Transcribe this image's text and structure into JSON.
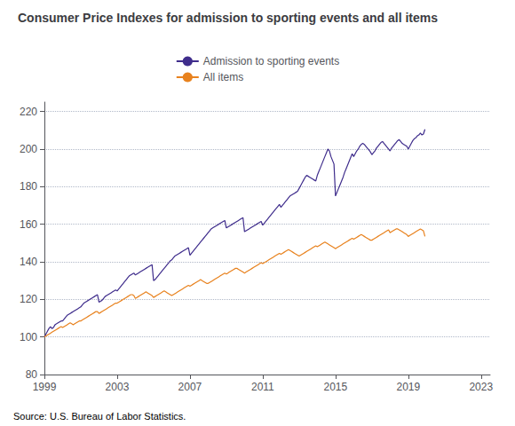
{
  "chart_data": {
    "type": "line",
    "title": "Consumer Price Indexes for admission to sporting events and all items",
    "annotations": [
      "Source: U.S. Bureau of Labor Statistics."
    ],
    "legend": "top",
    "grid": true,
    "xlim": [
      1999,
      2023.5
    ],
    "xticks": [
      1999,
      2003,
      2007,
      2011,
      2015,
      2019,
      2023
    ],
    "ylim": [
      80,
      225
    ],
    "yticks": [
      80,
      100,
      120,
      140,
      160,
      180,
      200,
      220
    ],
    "x": [
      1999,
      1999.08333333,
      1999.16666667,
      1999.25,
      1999.33333333,
      1999.41666667,
      1999.5,
      1999.58333333,
      1999.66666667,
      1999.75,
      1999.83333333,
      1999.91666667,
      2000,
      2000.08333333,
      2000.16666667,
      2000.25,
      2000.33333333,
      2000.41666667,
      2000.5,
      2000.58333333,
      2000.66666667,
      2000.75,
      2000.83333333,
      2000.91666667,
      2001,
      2001.08333333,
      2001.16666667,
      2001.25,
      2001.33333333,
      2001.41666667,
      2001.5,
      2001.58333333,
      2001.66666667,
      2001.75,
      2001.83333333,
      2001.91666667,
      2002,
      2002.08333333,
      2002.16666667,
      2002.25,
      2002.33333333,
      2002.41666667,
      2002.5,
      2002.58333333,
      2002.66666667,
      2002.75,
      2002.83333333,
      2002.91666667,
      2003,
      2003.08333333,
      2003.16666667,
      2003.25,
      2003.33333333,
      2003.41666667,
      2003.5,
      2003.58333333,
      2003.66666667,
      2003.75,
      2003.83333333,
      2003.91666667,
      2004,
      2004.08333333,
      2004.16666667,
      2004.25,
      2004.33333333,
      2004.41666667,
      2004.5,
      2004.58333333,
      2004.66666667,
      2004.75,
      2004.83333333,
      2004.91666667,
      2005,
      2005.08333333,
      2005.16666667,
      2005.25,
      2005.33333333,
      2005.41666667,
      2005.5,
      2005.58333333,
      2005.66666667,
      2005.75,
      2005.83333333,
      2005.91666667,
      2006,
      2006.08333333,
      2006.16666667,
      2006.25,
      2006.33333333,
      2006.41666667,
      2006.5,
      2006.58333333,
      2006.66666667,
      2006.75,
      2006.83333333,
      2006.91666667,
      2007,
      2007.08333333,
      2007.16666667,
      2007.25,
      2007.33333333,
      2007.41666667,
      2007.5,
      2007.58333333,
      2007.66666667,
      2007.75,
      2007.83333333,
      2007.91666667,
      2008,
      2008.08333333,
      2008.16666667,
      2008.25,
      2008.33333333,
      2008.41666667,
      2008.5,
      2008.58333333,
      2008.66666667,
      2008.75,
      2008.83333333,
      2008.91666667,
      2009,
      2009.08333333,
      2009.16666667,
      2009.25,
      2009.33333333,
      2009.41666667,
      2009.5,
      2009.58333333,
      2009.66666667,
      2009.75,
      2009.83333333,
      2009.91666667,
      2010,
      2010.08333333,
      2010.16666667,
      2010.25,
      2010.33333333,
      2010.41666667,
      2010.5,
      2010.58333333,
      2010.66666667,
      2010.75,
      2010.83333333,
      2010.91666667,
      2011,
      2011.08333333,
      2011.16666667,
      2011.25,
      2011.33333333,
      2011.41666667,
      2011.5,
      2011.58333333,
      2011.66666667,
      2011.75,
      2011.83333333,
      2011.91666667,
      2012,
      2012.08333333,
      2012.16666667,
      2012.25,
      2012.33333333,
      2012.41666667,
      2012.5,
      2012.58333333,
      2012.66666667,
      2012.75,
      2012.83333333,
      2012.91666667,
      2013,
      2013.08333333,
      2013.16666667,
      2013.25,
      2013.33333333,
      2013.41666667,
      2013.5,
      2013.58333333,
      2013.66666667,
      2013.75,
      2013.83333333,
      2013.91666667,
      2014,
      2014.08333333,
      2014.16666667,
      2014.25,
      2014.33333333,
      2014.41666667,
      2014.5,
      2014.58333333,
      2014.66666667,
      2014.75,
      2014.83333333,
      2014.91666667,
      2015,
      2015.08333333,
      2015.16666667,
      2015.25,
      2015.33333333,
      2015.41666667,
      2015.5,
      2015.58333333,
      2015.66666667,
      2015.75,
      2015.83333333,
      2015.91666667,
      2016,
      2016.08333333,
      2016.16666667,
      2016.25,
      2016.33333333,
      2016.41666667,
      2016.5,
      2016.58333333,
      2016.66666667,
      2016.75,
      2016.83333333,
      2016.91666667,
      2017,
      2017.08333333,
      2017.16666667,
      2017.25,
      2017.33333333,
      2017.41666667,
      2017.5,
      2017.58333333,
      2017.66666667,
      2017.75,
      2017.83333333,
      2017.91666667,
      2018,
      2018.08333333,
      2018.16666667,
      2018.25,
      2018.33333333,
      2018.41666667,
      2018.5,
      2018.58333333,
      2018.66666667,
      2018.75,
      2018.83333333,
      2018.91666667,
      2019,
      2019.08333333,
      2019.16666667,
      2019.25,
      2019.33333333,
      2019.41666667,
      2019.5,
      2019.58333333,
      2019.66666667,
      2019.75,
      2019.83333333,
      2019.91666667
    ],
    "series": [
      {
        "name": "Admission to sporting events",
        "color": "#3f2d8c",
        "values": [
          100.0,
          101.5,
          103.0,
          104.5,
          105.5,
          104.5,
          105.0,
          106.5,
          107.0,
          107.5,
          108.0,
          108.5,
          108.5,
          109.5,
          110.5,
          111.5,
          112.0,
          112.5,
          113.0,
          113.5,
          114.0,
          114.5,
          115.0,
          115.5,
          116.0,
          117.0,
          118.0,
          118.5,
          119.0,
          119.5,
          120.0,
          120.5,
          121.0,
          121.5,
          122.0,
          122.5,
          118.5,
          119.0,
          119.5,
          120.5,
          121.5,
          122.0,
          122.5,
          123.0,
          123.5,
          124.0,
          124.5,
          125.0,
          124.5,
          125.5,
          126.5,
          127.5,
          128.5,
          129.5,
          130.5,
          131.5,
          132.5,
          133.0,
          133.5,
          134.0,
          133.0,
          133.5,
          134.0,
          134.5,
          135.0,
          135.5,
          136.0,
          136.5,
          137.0,
          137.5,
          138.0,
          138.5,
          130.0,
          130.5,
          131.5,
          132.5,
          133.5,
          134.5,
          135.5,
          136.5,
          137.5,
          138.5,
          139.5,
          140.5,
          141.0,
          142.0,
          143.0,
          143.5,
          144.0,
          144.5,
          145.0,
          145.5,
          146.0,
          146.5,
          147.0,
          147.5,
          143.5,
          144.5,
          145.5,
          146.5,
          147.5,
          148.5,
          149.5,
          150.5,
          151.5,
          152.5,
          153.5,
          154.5,
          155.5,
          156.5,
          157.5,
          158.0,
          158.5,
          159.0,
          159.5,
          160.0,
          160.5,
          161.0,
          161.5,
          162.0,
          158.0,
          158.5,
          159.0,
          159.5,
          160.0,
          160.5,
          161.0,
          161.5,
          162.0,
          162.5,
          163.0,
          163.5,
          156.0,
          156.5,
          157.0,
          157.5,
          158.0,
          158.5,
          159.0,
          159.5,
          160.0,
          160.5,
          161.0,
          161.5,
          159.5,
          160.5,
          161.5,
          162.5,
          163.5,
          164.5,
          165.5,
          166.5,
          167.5,
          168.5,
          169.5,
          170.5,
          169.0,
          170.0,
          171.0,
          172.0,
          173.0,
          174.0,
          175.0,
          175.5,
          176.0,
          176.5,
          177.0,
          177.5,
          179.0,
          180.5,
          182.0,
          183.5,
          185.0,
          186.0,
          185.5,
          185.0,
          184.5,
          184.0,
          183.5,
          183.0,
          186.0,
          188.0,
          190.0,
          192.0,
          194.0,
          196.0,
          198.0,
          200.0,
          199.0,
          196.0,
          194.0,
          192.0,
          175.0,
          177.0,
          179.0,
          181.0,
          183.0,
          185.0,
          187.5,
          189.5,
          191.5,
          193.5,
          195.5,
          197.5,
          196.0,
          197.5,
          199.0,
          200.0,
          201.5,
          202.5,
          203.0,
          202.5,
          201.5,
          200.5,
          199.5,
          198.5,
          197.0,
          198.0,
          199.0,
          200.5,
          201.5,
          202.5,
          203.5,
          204.0,
          203.0,
          202.0,
          201.0,
          200.0,
          199.0,
          200.5,
          201.5,
          202.5,
          203.5,
          204.5,
          205.0,
          204.0,
          203.0,
          202.5,
          202.0,
          201.5,
          200.0,
          201.5,
          203.0,
          204.5,
          205.5,
          206.0,
          207.0,
          207.5,
          208.5,
          207.5,
          208.0,
          210.5
        ]
      },
      {
        "name": "All items",
        "color": "#e8821e",
        "values": [
          100.0,
          100.5,
          101.0,
          101.5,
          102.0,
          102.5,
          103.0,
          103.5,
          104.0,
          104.5,
          105.0,
          105.5,
          105.0,
          105.5,
          106.0,
          106.5,
          107.0,
          107.5,
          107.0,
          106.5,
          107.0,
          107.5,
          108.0,
          108.5,
          108.5,
          109.0,
          109.5,
          110.0,
          110.5,
          111.0,
          111.5,
          112.0,
          112.5,
          113.0,
          113.5,
          113.5,
          112.5,
          113.0,
          113.5,
          114.0,
          114.5,
          115.0,
          115.5,
          116.0,
          116.5,
          117.0,
          117.5,
          118.0,
          118.0,
          118.5,
          119.0,
          119.5,
          120.0,
          120.5,
          121.0,
          121.5,
          122.0,
          122.5,
          122.5,
          122.0,
          120.5,
          121.0,
          121.5,
          122.0,
          122.5,
          123.0,
          123.5,
          124.0,
          123.5,
          123.0,
          122.5,
          122.0,
          121.0,
          121.5,
          122.0,
          122.5,
          123.0,
          123.5,
          124.0,
          124.5,
          124.0,
          123.5,
          123.0,
          122.5,
          122.0,
          122.5,
          123.0,
          123.5,
          124.0,
          124.5,
          125.0,
          125.5,
          126.0,
          126.5,
          127.0,
          127.5,
          127.0,
          127.5,
          128.0,
          128.5,
          129.0,
          129.5,
          130.0,
          130.5,
          130.0,
          129.5,
          129.0,
          128.5,
          128.5,
          129.0,
          129.5,
          130.0,
          130.5,
          131.0,
          131.5,
          132.0,
          132.5,
          133.0,
          133.5,
          134.0,
          133.5,
          134.0,
          134.5,
          135.0,
          135.5,
          136.0,
          136.5,
          136.5,
          136.0,
          135.5,
          135.0,
          134.5,
          134.0,
          134.5,
          135.0,
          135.5,
          136.0,
          136.5,
          137.0,
          137.5,
          138.0,
          138.5,
          139.0,
          139.5,
          139.0,
          139.5,
          140.0,
          140.5,
          141.0,
          141.5,
          142.0,
          142.5,
          143.0,
          143.5,
          144.0,
          144.5,
          144.0,
          144.5,
          145.0,
          145.5,
          146.0,
          146.5,
          146.0,
          145.5,
          145.0,
          144.5,
          144.0,
          143.5,
          143.0,
          143.5,
          144.0,
          144.5,
          145.0,
          145.5,
          146.0,
          146.5,
          147.0,
          147.5,
          148.0,
          148.5,
          148.0,
          148.5,
          149.0,
          149.5,
          150.0,
          150.5,
          150.0,
          149.5,
          149.0,
          148.5,
          148.0,
          147.5,
          147.0,
          147.5,
          148.0,
          148.5,
          149.0,
          149.5,
          150.0,
          150.5,
          151.0,
          151.5,
          152.0,
          152.5,
          152.0,
          152.5,
          153.0,
          153.5,
          154.0,
          154.5,
          154.0,
          153.5,
          153.0,
          152.5,
          152.0,
          151.5,
          151.5,
          152.0,
          152.5,
          153.0,
          153.5,
          154.0,
          154.5,
          155.0,
          155.5,
          156.0,
          156.5,
          157.0,
          155.5,
          156.0,
          156.5,
          157.0,
          157.5,
          157.5,
          157.0,
          156.5,
          156.0,
          155.5,
          155.0,
          154.5,
          153.5,
          154.0,
          154.5,
          155.0,
          155.5,
          156.0,
          156.5,
          157.0,
          157.5,
          157.0,
          156.5,
          153.5
        ]
      }
    ]
  }
}
